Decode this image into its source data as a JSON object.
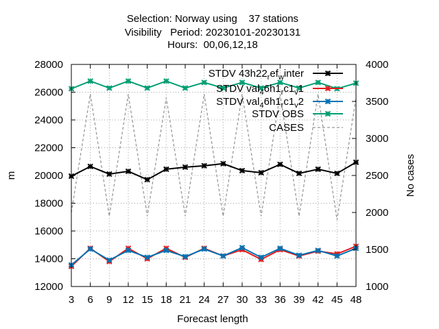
{
  "chart_data": {
    "type": "line",
    "title_lines": [
      "Selection: Norway using    37 stations",
      "Visibility   Period: 20230101-20230131",
      "Hours:  00,06,12,18"
    ],
    "xlabel": "Forecast length",
    "ylabel": "m",
    "y2label": "No cases",
    "x": [
      3,
      6,
      9,
      12,
      15,
      18,
      21,
      24,
      27,
      30,
      33,
      36,
      39,
      42,
      45,
      48
    ],
    "xlim": [
      3,
      48
    ],
    "ylim": [
      12000,
      28000
    ],
    "y2lim": [
      1000,
      4000
    ],
    "y_ticks": [
      12000,
      14000,
      16000,
      18000,
      20000,
      22000,
      24000,
      26000,
      28000
    ],
    "y2_ticks": [
      1000,
      1500,
      2000,
      2500,
      3000,
      3500,
      4000
    ],
    "grid": true,
    "legend_position": "top-right",
    "series": [
      {
        "name": "STDV 43h22_r ef_w inter",
        "legend_main": [
          "STDV 43h22",
          "ef",
          "inter"
        ],
        "legend_sub": [
          "r",
          "w"
        ],
        "axis": "y",
        "color": "#000000",
        "marker": "x",
        "dashed": false,
        "values": [
          19950,
          20650,
          20100,
          20300,
          19700,
          20450,
          20600,
          20700,
          20850,
          20350,
          20200,
          20800,
          20150,
          20450,
          20150,
          20950
        ]
      },
      {
        "name": "STDV val_4 6h1_r c1_v 1",
        "legend_main": [
          "STDV val",
          "6h1",
          "c1",
          "1"
        ],
        "legend_sub": [
          "4",
          "r",
          "v"
        ],
        "axis": "y",
        "color": "#e41a1c",
        "marker": "x",
        "dashed": false,
        "values": [
          13450,
          14750,
          13800,
          14750,
          14000,
          14750,
          14100,
          14750,
          14200,
          14650,
          13950,
          14650,
          14200,
          14550,
          14350,
          14900
        ]
      },
      {
        "name": "STDV val_4 6h1_r c1_v 2",
        "legend_main": [
          "STDV val",
          "6h1",
          "c1",
          "2"
        ],
        "legend_sub": [
          "4",
          "r",
          "v"
        ],
        "axis": "y",
        "color": "#0072b2",
        "marker": "x",
        "dashed": false,
        "values": [
          13550,
          14700,
          13900,
          14600,
          14100,
          14600,
          14150,
          14700,
          14200,
          14800,
          14100,
          14750,
          14250,
          14600,
          14200,
          14750
        ]
      },
      {
        "name": "STDV OBS",
        "legend_main": [
          "STDV OBS"
        ],
        "legend_sub": [],
        "axis": "y",
        "color": "#009e73",
        "marker": "x",
        "dashed": false,
        "values": [
          26250,
          26800,
          26300,
          26800,
          26300,
          26800,
          26300,
          26700,
          26300,
          26700,
          26300,
          26700,
          26300,
          26700,
          26250,
          26650
        ]
      },
      {
        "name": "CASES",
        "legend_main": [
          "CASES"
        ],
        "legend_sub": [],
        "axis": "y2",
        "color": "#999999",
        "marker": "none",
        "dashed": true,
        "values": [
          2000,
          3600,
          1950,
          3600,
          1950,
          3550,
          1950,
          3600,
          1950,
          3600,
          1950,
          3600,
          1950,
          3600,
          1900,
          3550
        ]
      }
    ]
  }
}
